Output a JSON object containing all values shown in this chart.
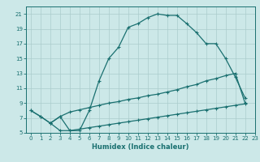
{
  "title": "",
  "xlabel": "Humidex (Indice chaleur)",
  "bg_color": "#cce8e8",
  "grid_color": "#aacccc",
  "line_color": "#1a7070",
  "xlim": [
    -0.5,
    23
  ],
  "ylim": [
    5,
    22
  ],
  "xticks": [
    0,
    1,
    2,
    3,
    4,
    5,
    6,
    7,
    8,
    9,
    10,
    11,
    12,
    13,
    14,
    15,
    16,
    17,
    18,
    19,
    20,
    21,
    22,
    23
  ],
  "yticks": [
    5,
    7,
    9,
    11,
    13,
    15,
    17,
    19,
    21
  ],
  "line1_x": [
    0,
    1,
    2,
    3,
    4,
    5,
    6,
    7,
    8,
    9,
    10,
    11,
    12,
    13,
    14,
    15,
    16,
    17,
    18,
    19,
    20,
    21,
    22
  ],
  "line1_y": [
    8.0,
    7.2,
    6.3,
    7.2,
    5.3,
    5.3,
    8.0,
    12.0,
    15.0,
    16.5,
    19.2,
    19.7,
    20.5,
    21.0,
    20.8,
    20.8,
    19.7,
    18.5,
    17.0,
    17.0,
    15.0,
    12.5,
    9.7
  ],
  "line2_x": [
    0,
    1,
    2,
    3,
    4,
    5,
    6,
    7,
    8,
    9,
    10,
    11,
    12,
    13,
    14,
    15,
    16,
    17,
    18,
    19,
    20,
    21,
    22
  ],
  "line2_y": [
    8.0,
    7.2,
    6.3,
    7.2,
    7.8,
    8.1,
    8.4,
    8.7,
    9.0,
    9.2,
    9.5,
    9.7,
    10.0,
    10.2,
    10.5,
    10.8,
    11.2,
    11.5,
    12.0,
    12.3,
    12.7,
    13.0,
    9.0
  ],
  "line3_x": [
    2,
    3,
    4,
    5,
    6,
    7,
    8,
    9,
    10,
    11,
    12,
    13,
    14,
    15,
    16,
    17,
    18,
    19,
    20,
    21,
    22
  ],
  "line3_y": [
    6.3,
    5.3,
    5.3,
    5.5,
    5.7,
    5.9,
    6.1,
    6.3,
    6.5,
    6.7,
    6.9,
    7.1,
    7.3,
    7.5,
    7.7,
    7.9,
    8.1,
    8.3,
    8.5,
    8.7,
    8.9
  ]
}
